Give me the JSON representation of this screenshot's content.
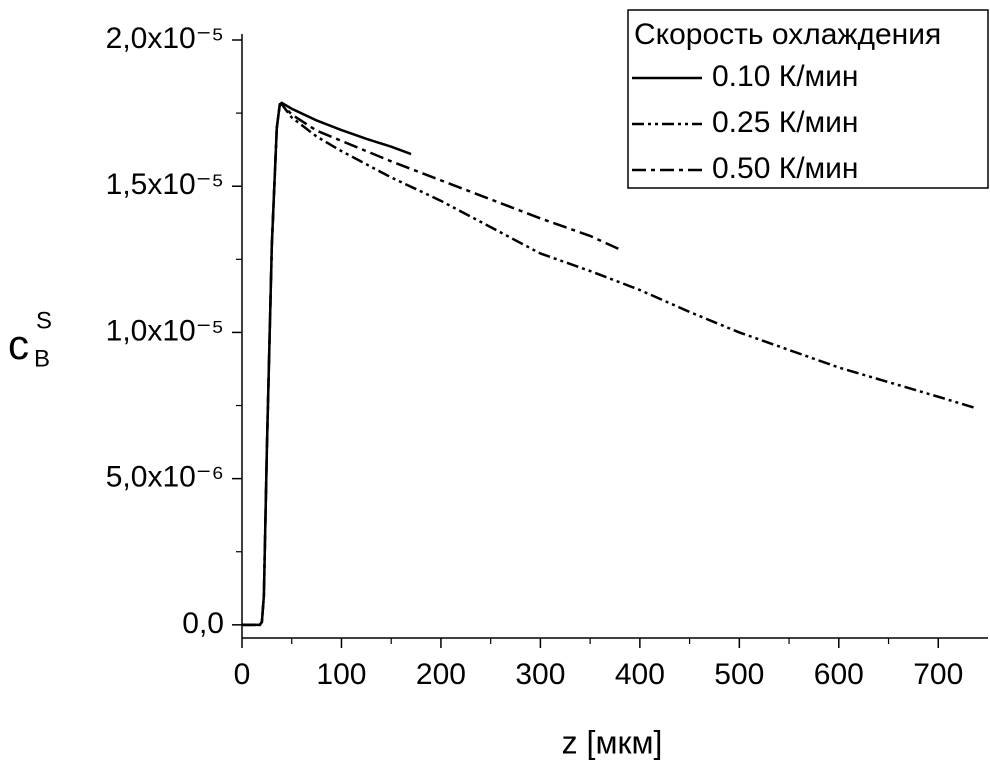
{
  "chart_data": {
    "type": "line",
    "x_label": "z [мкм]",
    "y_label": {
      "base": "c",
      "sub": "B",
      "sup": "S"
    },
    "legend_title": "Скорость охлаждения",
    "legend": "top-right",
    "xlim": [
      0,
      750
    ],
    "ylim": [
      -4.5e-07,
      2e-05
    ],
    "xticks": [
      0,
      100,
      200,
      300,
      400,
      500,
      600,
      700
    ],
    "xminorticks": [
      50,
      150,
      250,
      350,
      450,
      550,
      650
    ],
    "yticks": [
      {
        "value": 0,
        "label": "0,0"
      },
      {
        "value": 5e-06,
        "label": "5,0x10⁻⁶"
      },
      {
        "value": 1e-05,
        "label": "1,0x10⁻⁵"
      },
      {
        "value": 1.5e-05,
        "label": "1,5x10⁻⁵"
      },
      {
        "value": 2e-05,
        "label": "2,0x10⁻⁵"
      }
    ],
    "yminorticks": [
      2.5e-06,
      7.5e-06,
      1.25e-05,
      1.75e-05
    ],
    "series": [
      {
        "name": "0.10 К/мин",
        "color": "#000000",
        "dash": "solid",
        "x": [
          0,
          18,
          20,
          22,
          25,
          30,
          35,
          38,
          40,
          50,
          75,
          100,
          125,
          150,
          170
        ],
        "values": [
          0,
          0,
          1e-07,
          1e-06,
          6e-06,
          1.3e-05,
          1.7e-05,
          1.78e-05,
          1.785e-05,
          1.765e-05,
          1.725e-05,
          1.692e-05,
          1.662e-05,
          1.635e-05,
          1.61e-05
        ]
      },
      {
        "name": "0.25 К/мин",
        "color": "#000000",
        "dash": "dash-dot-dot",
        "x": [
          0,
          18,
          20,
          22,
          25,
          30,
          35,
          38,
          40,
          50,
          75,
          100,
          150,
          200,
          250,
          300,
          350,
          400,
          450,
          500,
          550,
          600,
          650,
          700,
          737
        ],
        "values": [
          0,
          0,
          1e-07,
          1e-06,
          6e-06,
          1.3e-05,
          1.7e-05,
          1.78e-05,
          1.78e-05,
          1.735e-05,
          1.67e-05,
          1.62e-05,
          1.53e-05,
          1.45e-05,
          1.36e-05,
          1.27e-05,
          1.21e-05,
          1.145e-05,
          1.07e-05,
          1e-05,
          9.4e-06,
          8.8e-06,
          8.3e-06,
          7.8e-06,
          7.42e-06
        ]
      },
      {
        "name": "0.50 К/мин",
        "color": "#000000",
        "dash": "dash-dot",
        "x": [
          0,
          18,
          20,
          22,
          25,
          30,
          35,
          38,
          40,
          50,
          75,
          100,
          150,
          200,
          250,
          300,
          350,
          381
        ],
        "values": [
          0,
          0,
          1e-07,
          1e-06,
          6e-06,
          1.3e-05,
          1.7e-05,
          1.78e-05,
          1.782e-05,
          1.745e-05,
          1.69e-05,
          1.655e-05,
          1.585e-05,
          1.52e-05,
          1.455e-05,
          1.39e-05,
          1.33e-05,
          1.282e-05
        ]
      }
    ]
  }
}
